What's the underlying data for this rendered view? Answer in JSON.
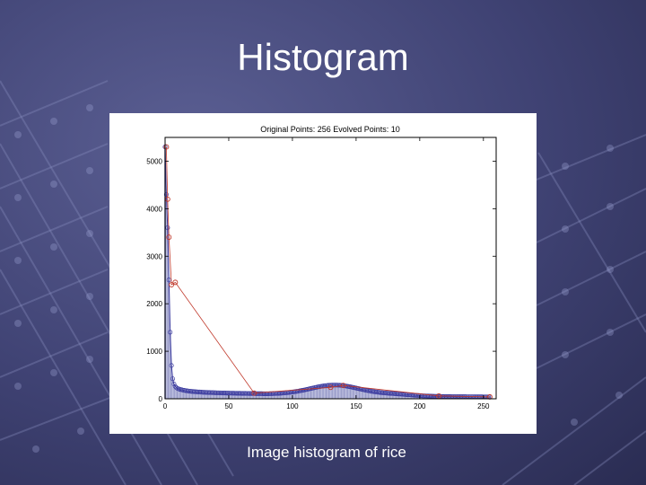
{
  "slide": {
    "title": "Histogram",
    "caption": "Image histogram of rice"
  },
  "colors": {
    "background": "#3f4273",
    "original_series": "#3a3a9e",
    "evolved_series": "#c0392b"
  },
  "chart_data": {
    "type": "bar",
    "title": "Original Points: 256   Evolved Points: 10",
    "xlabel": "",
    "ylabel": "",
    "xlim": [
      0,
      260
    ],
    "ylim": [
      0,
      5500
    ],
    "xticks": [
      0,
      50,
      100,
      150,
      200,
      250
    ],
    "yticks": [
      0,
      1000,
      2000,
      3000,
      4000,
      5000
    ],
    "grid": false,
    "series": [
      {
        "style": "bars with circle markers",
        "x_start": 0,
        "values": [
          5300,
          4300,
          3600,
          2500,
          1400,
          700,
          420,
          310,
          260,
          230,
          215,
          205,
          195,
          190,
          182,
          178,
          172,
          168,
          165,
          160,
          158,
          155,
          152,
          150,
          148,
          145,
          143,
          142,
          140,
          138,
          136,
          135,
          134,
          133,
          132,
          131,
          130,
          129,
          128,
          127,
          126,
          125,
          125,
          124,
          123,
          122,
          122,
          121,
          120,
          120,
          119,
          118,
          118,
          117,
          117,
          116,
          115,
          115,
          114,
          114,
          113,
          113,
          112,
          112,
          111,
          111,
          110,
          110,
          110,
          109,
          109,
          108,
          108,
          108,
          107,
          107,
          107,
          106,
          106,
          106,
          106,
          106,
          107,
          107,
          108,
          109,
          110,
          111,
          112,
          113,
          115,
          117,
          119,
          121,
          123,
          126,
          129,
          132,
          135,
          138,
          142,
          146,
          150,
          154,
          158,
          163,
          168,
          173,
          178,
          183,
          189,
          195,
          201,
          207,
          213,
          219,
          225,
          231,
          237,
          243,
          249,
          254,
          259,
          264,
          268,
          272,
          276,
          279,
          282,
          284,
          286,
          287,
          288,
          288,
          288,
          287,
          286,
          284,
          282,
          279,
          276,
          272,
          268,
          264,
          259,
          254,
          249,
          243,
          237,
          231,
          225,
          219,
          213,
          207,
          201,
          195,
          189,
          183,
          178,
          173,
          168,
          163,
          158,
          154,
          150,
          146,
          142,
          138,
          135,
          132,
          129,
          126,
          123,
          121,
          119,
          117,
          115,
          113,
          111,
          109,
          107,
          105,
          103,
          101,
          99,
          97,
          95,
          93,
          91,
          89,
          87,
          85,
          83,
          81,
          79,
          77,
          75,
          73,
          71,
          69,
          67,
          65,
          63,
          61,
          60,
          59,
          58,
          57,
          56,
          55,
          54,
          53,
          52,
          51,
          50,
          50,
          49,
          49,
          48,
          48,
          47,
          47,
          46,
          46,
          46,
          45,
          45,
          45,
          44,
          44,
          44,
          44,
          43,
          43,
          43,
          43,
          43,
          42,
          42,
          42,
          42,
          42,
          42,
          41,
          41,
          41,
          41,
          41,
          41,
          41,
          40,
          40,
          40,
          40,
          40,
          40
        ]
      },
      {
        "style": "line with markers",
        "x": [
          1,
          2,
          3,
          5,
          8,
          70,
          130,
          140,
          215,
          255
        ],
        "y": [
          5300,
          4200,
          3400,
          2400,
          2450,
          120,
          240,
          280,
          60,
          40
        ]
      }
    ]
  }
}
